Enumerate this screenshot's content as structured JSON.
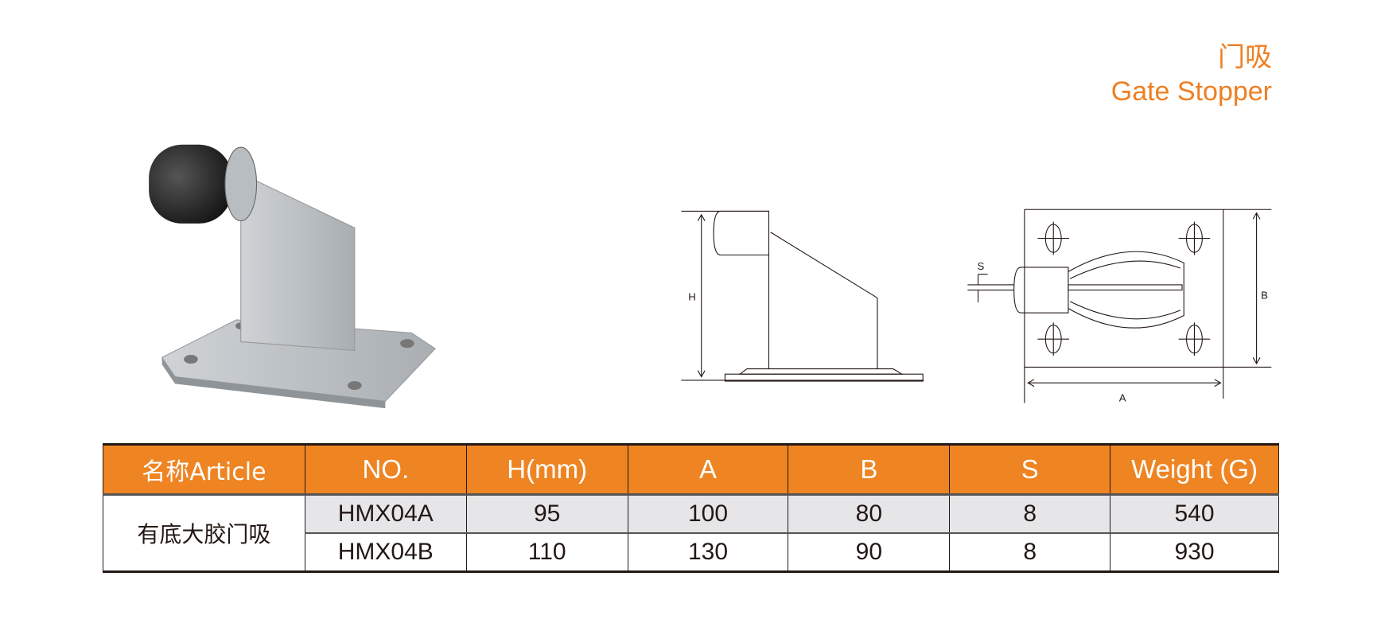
{
  "title": {
    "cn": "门吸",
    "en": "Gate Stopper"
  },
  "accent_color": "#ee8422",
  "drawing": {
    "labels": {
      "h": "H",
      "s": "S",
      "a": "A",
      "b": "B"
    }
  },
  "table": {
    "headers": [
      "名称Article",
      "NO.",
      "H(mm)",
      "A",
      "B",
      "S",
      "Weight (G)"
    ],
    "article_name": "有底大胶门吸",
    "rows": [
      [
        "HMX04A",
        "95",
        "100",
        "80",
        "8",
        "540"
      ],
      [
        "HMX04B",
        "110",
        "130",
        "90",
        "8",
        "930"
      ]
    ]
  }
}
